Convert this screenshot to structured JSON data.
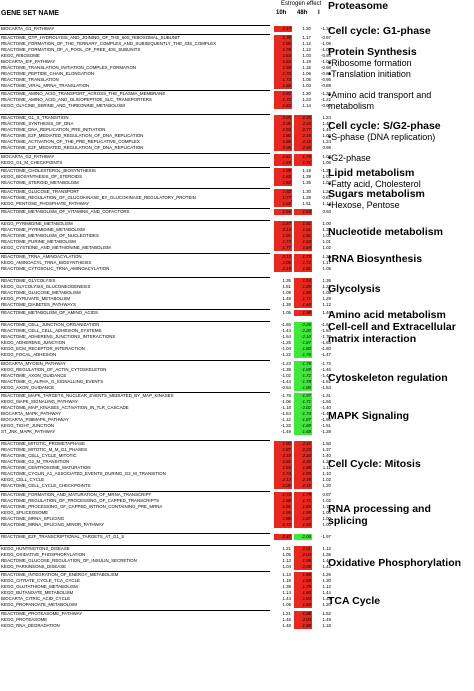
{
  "header": {
    "title": "GENE SET NAME",
    "effect": "Estrogen effect",
    "col1": "10h",
    "col2": "48h",
    "col3": "I"
  },
  "rows": [
    {
      "n": "BIOCARTA_G1_PATHWAY",
      "a": "2.17",
      "b": "1.30",
      "i": "-1.34",
      "ca": "r",
      "cb": "w",
      "sep": 0
    },
    {
      "n": "REACTOME_GTP_HYDROLYSIS_AND_JOINING_OF_THE_60S_RIBOSOMAL_SUBUNIT",
      "a": "1.78",
      "b": "1.17",
      "i": "-0.97",
      "ca": "r",
      "cb": "w",
      "sep": 1
    },
    {
      "n": "REACTOME_FORMATION_OF_THE_TERNARY_COMPLEX_AND_SUBSEQUENTLY_THE_43S_COMPLEX",
      "a": "1.80",
      "b": "1.12",
      "i": "-1.09",
      "ca": "r",
      "cb": "w",
      "sep": 0
    },
    {
      "n": "REACTOME_FORMATION_OF_A_POOL_OF_FREE_40S_SUBUNITS",
      "a": "1.76",
      "b": "1.12",
      "i": "-1.06",
      "ca": "r",
      "cb": "w",
      "sep": 0
    },
    {
      "n": "KEGG_RIBOSOME",
      "a": "1.64",
      "b": "1.03",
      "i": "-0.94",
      "ca": "r",
      "cb": "w",
      "sep": 0
    },
    {
      "n": "BIOCARTA_EIF_PATHWAY",
      "a": "1.63",
      "b": "1.19",
      "i": "-1.08",
      "ca": "r",
      "cb": "w",
      "sep": 0
    },
    {
      "n": "REACTOME_TRANSLATION_INITIATION_COMPLEX_FORMATION",
      "a": "1.59",
      "b": "1.15",
      "i": "-0.98",
      "ca": "r",
      "cb": "w",
      "sep": 0
    },
    {
      "n": "REACTOME_PEPTIDE_CHAIN_ELONGATION",
      "a": "1.73",
      "b": "1.06",
      "i": "-0.86",
      "ca": "r",
      "cb": "w",
      "sep": 0
    },
    {
      "n": "REACTOME_TRANSLATION",
      "a": "1.73",
      "b": "1.05",
      "i": "-0.95",
      "ca": "r",
      "cb": "w",
      "sep": 0
    },
    {
      "n": "REACTOME_VIRAL_MRNA_TRANSLATION",
      "a": "1.66",
      "b": "1.03",
      "i": "-0.89",
      "ca": "r",
      "cb": "w",
      "sep": 0
    },
    {
      "n": "REACTOME_AMINO_ACID_TRANSPORT_ACROSS_THE_PLASMA_MEMBRANE",
      "a": "1.62",
      "b": "1.30",
      "i": "-1.35",
      "ca": "r",
      "cb": "w",
      "sep": 1
    },
    {
      "n": "REACTOME_AMINO_ACID_AND_OLIGOPEPTIDE_SLC_TRANSPORTERS",
      "a": "1.73",
      "b": "1.23",
      "i": "-1.22",
      "ca": "r",
      "cb": "w",
      "sep": 0
    },
    {
      "n": "KEGG_GLYCINE_SERINE_AND_THREONINE_METABOLISM",
      "a": "1.63",
      "b": "1.14",
      "i": "-0.90",
      "ca": "r",
      "cb": "w",
      "sep": 0
    },
    {
      "n": "REACTOME_G1_S_TRANSITION",
      "a": "2.05",
      "b": "2.25",
      "i": "1.24",
      "ca": "r",
      "cb": "r",
      "sep": 2
    },
    {
      "n": "REACTOME_SYNTHESIS_OF_DNA",
      "a": "2.00",
      "b": "2.43",
      "i": "1.48",
      "ca": "r",
      "cb": "r",
      "sep": 0
    },
    {
      "n": "REACTOME_DNA_REPLICATION_PRE_INITIATION",
      "a": "1.93",
      "b": "2.77",
      "i": "1.45",
      "ca": "r",
      "cb": "r",
      "sep": 0
    },
    {
      "n": "REACTOME_E2F_MEDIATED_REGULATION_OF_DNA_REPLICATION",
      "a": "1.80",
      "b": "2.16",
      "i": "1.00",
      "ca": "r",
      "cb": "r",
      "sep": 0
    },
    {
      "n": "REACTOME_ACTIVATION_OF_THE_PRE_REPLICATIVE_COMPLEX",
      "a": "1.86",
      "b": "2.15",
      "i": "1.24",
      "ca": "r",
      "cb": "r",
      "sep": 0
    },
    {
      "n": "REACTOME_E2F_MEDIATED_REGULATION_OF_DNA_REPLICATION",
      "a": "2.06",
      "b": "2.40",
      "i": "0.99",
      "ca": "r",
      "cb": "r",
      "sep": 0
    },
    {
      "n": "BIOCARTA_G2_PATHWAY",
      "a": "1.61",
      "b": "1.76",
      "i": "1.08",
      "ca": "r",
      "cb": "r",
      "sep": 1
    },
    {
      "n": "KEGG_G1_M_CHECKPOINTS",
      "a": "1.69",
      "b": "1.71",
      "i": "1.06",
      "ca": "r",
      "cb": "r",
      "sep": 0
    },
    {
      "n": "REACTOME_CHOLESTEROL_BIOSYNTHESIS",
      "a": "1.98",
      "b": "1.19",
      "i": "-1.25",
      "ca": "r",
      "cb": "w",
      "sep": 1
    },
    {
      "n": "KEGG_BIOSYNTHESIS_OF_STEROIDS",
      "a": "1.65",
      "b": "1.39",
      "i": "1.01",
      "ca": "r",
      "cb": "w",
      "sep": 0
    },
    {
      "n": "REACTOME_STEROID_METABOLISM",
      "a": "1.63",
      "b": "1.35",
      "i": "1.03",
      "ca": "r",
      "cb": "w",
      "sep": 0
    },
    {
      "n": "REACTOME_GLUCOSE_TRANSPORT",
      "a": "1.92",
      "b": "1.30",
      "i": "1.24",
      "ca": "r",
      "cb": "w",
      "sep": 1
    },
    {
      "n": "REACTOME_REGULATION_OF_GLUCOKINASE_BY_GLUCOKINASE_REGULATORY_PROTEIN",
      "a": "1.77",
      "b": "1.28",
      "i": "0.81",
      "ca": "r",
      "cb": "w",
      "sep": 0
    },
    {
      "n": "KEGG_PENTOSE_PHOSPHATE_PATHWAY",
      "a": "1.69",
      "b": "1.51",
      "i": "1.13",
      "ca": "r",
      "cb": "w",
      "sep": 0
    },
    {
      "n": "REACTOME_METABOLISM_OF_VITAMINS_AND_COFACTORS",
      "a": "1.66",
      "b": "1.64",
      "i": "0.93",
      "ca": "r",
      "cb": "r",
      "sep": 1
    },
    {
      "n": "KEGG_PYRIMIDINE_METABOLISM",
      "a": "1.67",
      "b": "1.51",
      "i": "1.00",
      "ca": "r",
      "cb": "r",
      "sep": 2
    },
    {
      "n": "REACTOME_PYRIMIDINE_METABOLISM",
      "a": "2.13",
      "b": "1.61",
      "i": "1.31",
      "ca": "r",
      "cb": "r",
      "sep": 0
    },
    {
      "n": "REACTOME_METABOLISM_OF_NUCLEOTIDES",
      "a": "1.91",
      "b": "1.61",
      "i": "1.02",
      "ca": "r",
      "cb": "r",
      "sep": 0
    },
    {
      "n": "REACTOME_PURINE_METABOLISM",
      "a": "1.74",
      "b": "1.63",
      "i": "1.01",
      "ca": "r",
      "cb": "r",
      "sep": 0
    },
    {
      "n": "KEGG_CYSTEINE_AND_METHIONINE_METABOLISM",
      "a": "1.77",
      "b": "1.64",
      "i": "1.02",
      "ca": "r",
      "cb": "r",
      "sep": 0
    },
    {
      "n": "REACTOME_TRNA_AMINOACYLATION",
      "a": "2.12",
      "b": "1.75",
      "i": "1.21",
      "ca": "r",
      "cb": "r",
      "sep": 1
    },
    {
      "n": "KEGG_AMINOACYL_TRNA_BIOSYNTHESIS",
      "a": "2.06",
      "b": "1.72",
      "i": "1.17",
      "ca": "r",
      "cb": "r",
      "sep": 0
    },
    {
      "n": "REACTOME_CYTOSOLIC_TRNA_AMINOACYLATION",
      "a": "2.19",
      "b": "1.81",
      "i": "1.05",
      "ca": "r",
      "cb": "r",
      "sep": 0
    },
    {
      "n": "REACTOME_GLYCOLYSIS",
      "a": "1.35",
      "b": "1.54",
      "i": "1.36",
      "ca": "w",
      "cb": "r",
      "sep": 2
    },
    {
      "n": "KEGG_GLYCOLYSIS_GLUCONEOGENESIS",
      "a": "1.51",
      "b": "1.69",
      "i": "1.21",
      "ca": "w",
      "cb": "r",
      "sep": 0
    },
    {
      "n": "REACTOME_GLUCOSE_METABOLISM",
      "a": "1.09",
      "b": "1.80",
      "i": "1.08",
      "ca": "w",
      "cb": "r",
      "sep": 0
    },
    {
      "n": "KEGG_PYRUVATE_METABOLISM",
      "a": "1.48",
      "b": "1.71",
      "i": "1.29",
      "ca": "w",
      "cb": "r",
      "sep": 0
    },
    {
      "n": "REACTOME_DIABETES_PATHWAYS",
      "a": "1.38",
      "b": "1.60",
      "i": "1.12",
      "ca": "w",
      "cb": "r",
      "sep": 0
    },
    {
      "n": "REACTOME_METABOLISM_OF_AMINO_ACIDS",
      "a": "1.05",
      "b": "1.98",
      "i": "1.46",
      "ca": "w",
      "cb": "r",
      "sep": 1
    },
    {
      "n": "REACTOME_CELL_JUNCTION_ORGANIZATION",
      "a": "-1.66",
      "b": "-2.26",
      "i": "-1.61",
      "ca": "w",
      "cb": "g",
      "sep": 2
    },
    {
      "n": "REACTOME_CELL_CELL_ADHESION_SYSTEMS",
      "a": "-1.44",
      "b": "-2.20",
      "i": "-1.84",
      "ca": "w",
      "cb": "g",
      "sep": 0
    },
    {
      "n": "REACTOME_ADHERENS_JUNCTIONS_INTERACTIONS",
      "a": "-1.64",
      "b": "-2.10",
      "i": "-1.70",
      "ca": "w",
      "cb": "g",
      "sep": 0
    },
    {
      "n": "KEGG_ADHERENS_JUNCTION",
      "a": "-1.26",
      "b": "-1.87",
      "i": "-1.65",
      "ca": "w",
      "cb": "g",
      "sep": 0
    },
    {
      "n": "KEGG_ECM_RECEPTOR_INTERACTION",
      "a": "-1.04",
      "b": "-1.80",
      "i": "-1.60",
      "ca": "w",
      "cb": "g",
      "sep": 0
    },
    {
      "n": "KEGG_FOCAL_ADHESION",
      "a": "-1.22",
      "b": "-1.76",
      "i": "-1.47",
      "ca": "w",
      "cb": "g",
      "sep": 0
    },
    {
      "n": "BIOCARTA_MYOSIN_PATHWAY",
      "a": "-1.23",
      "b": "-1.76",
      "i": "-1.72",
      "ca": "w",
      "cb": "g",
      "sep": 1
    },
    {
      "n": "KEGG_REGULATION_OF_ACTIN_CYTOSKELETON",
      "a": "-1.38",
      "b": "-1.89",
      "i": "-1.46",
      "ca": "w",
      "cb": "g",
      "sep": 0
    },
    {
      "n": "REACTOME_AXON_GUIDANCE",
      "a": "-1.02",
      "b": "-1.72",
      "i": "-1.43",
      "ca": "w",
      "cb": "g",
      "sep": 0
    },
    {
      "n": "REACTOME_G_ALPHA_G_SIGNALLING_EVENTS",
      "a": "-1.44",
      "b": "-1.78",
      "i": "-1.52",
      "ca": "w",
      "cb": "g",
      "sep": 0
    },
    {
      "n": "KEGG_AXON_GUIDANCE",
      "a": "-0.54",
      "b": "-1.80",
      "i": "-1.53",
      "ca": "w",
      "cb": "g",
      "sep": 0
    },
    {
      "n": "REACTOME_MAPK_TARGETS_NUCLEAR_EVENTS_MEDIATED_BY_MAP_KINASES",
      "a": "-1.76",
      "b": "-1.97",
      "i": "-1.31",
      "ca": "w",
      "cb": "g",
      "sep": 1
    },
    {
      "n": "KEGG_MAPK_SIGNALING_PATHWAY",
      "a": "-1.06",
      "b": "-1.71",
      "i": "-1.56",
      "ca": "w",
      "cb": "g",
      "sep": 0
    },
    {
      "n": "REACTOME_MAP_KINASES_ACTIVATION_IN_TLR_CASCADE",
      "a": "-1.18",
      "b": "-2.02",
      "i": "-1.40",
      "ca": "w",
      "cb": "g",
      "sep": 0
    },
    {
      "n": "BIOCARTA_MAPK_PATHWAY",
      "a": "-1.54",
      "b": "-1.74",
      "i": "-1.49",
      "ca": "w",
      "cb": "g",
      "sep": 0
    },
    {
      "n": "BIOCARTA_P38MAPK_PATHWAY",
      "a": "-1.12",
      "b": "-1.87",
      "i": "-1.66",
      "ca": "w",
      "cb": "g",
      "sep": 0
    },
    {
      "n": "KEGG_TIGHT_JUNCTION",
      "a": "-1.32",
      "b": "-1.69",
      "i": "-1.51",
      "ca": "w",
      "cb": "g",
      "sep": 0
    },
    {
      "n": "ST_JNK_MAPK_PATHWAY",
      "a": "-1.49",
      "b": "-1.68",
      "i": "-1.28",
      "ca": "w",
      "cb": "g",
      "sep": 0
    },
    {
      "n": "REACTOME_MITOTIC_PROMETAPHASE",
      "a": "1.80",
      "b": "2.41",
      "i": "1.50",
      "ca": "r",
      "cb": "r",
      "sep": 2
    },
    {
      "n": "REACTOME_MITOTIC_M_M_G1_PHASES",
      "a": "1.87",
      "b": "2.23",
      "i": "1.37",
      "ca": "r",
      "cb": "r",
      "sep": 0
    },
    {
      "n": "REACTOME_CELL_CYCLE_MITOTIC",
      "a": "2.10",
      "b": "2.34",
      "i": "1.40",
      "ca": "r",
      "cb": "r",
      "sep": 0
    },
    {
      "n": "REACTOME_G2_M_TRANSITION",
      "a": "1.81",
      "b": "2.20",
      "i": "1.25",
      "ca": "r",
      "cb": "r",
      "sep": 0
    },
    {
      "n": "REACTOME_CENTROSOME_MATURATION",
      "a": "1.84",
      "b": "1.88",
      "i": "1.11",
      "ca": "r",
      "cb": "r",
      "sep": 0
    },
    {
      "n": "REACTOME_CYCLIN_A1_ASSOCIATED_EVENTS_DURING_G2_M_TRANSITION",
      "a": "1.74",
      "b": "1.95",
      "i": "1.10",
      "ca": "r",
      "cb": "r",
      "sep": 0
    },
    {
      "n": "KEGG_CELL_CYCLE",
      "a": "2.13",
      "b": "2.18",
      "i": "1.02",
      "ca": "r",
      "cb": "r",
      "sep": 0
    },
    {
      "n": "REACTOME_CELL_CYCLE_CHECKPOINTS",
      "a": "2.00",
      "b": "2.15",
      "i": "1.20",
      "ca": "r",
      "cb": "r",
      "sep": 0
    },
    {
      "n": "REACTOME_FORMATION_AND_MATURATION_OF_MRNA_TRANSCRIPT",
      "a": "1.74",
      "b": "1.79",
      "i": "0.97",
      "ca": "r",
      "cb": "r",
      "sep": 1
    },
    {
      "n": "REACTOME_REGULATION_OF_PROCESSING_OF_CAPPED_TRANSCRIPTS",
      "a": "1.86",
      "b": "1.71",
      "i": "1.02",
      "ca": "r",
      "cb": "r",
      "sep": 0
    },
    {
      "n": "REACTOME_PROCESSING_OF_CAPPED_INTRON_CONTAINING_PRE_MRNA",
      "a": "1.91",
      "b": "1.65",
      "i": "1.17",
      "ca": "r",
      "cb": "r",
      "sep": 0
    },
    {
      "n": "KEGG_SPLICEOSOME",
      "a": "1.95",
      "b": "1.95",
      "i": "1.06",
      "ca": "r",
      "cb": "r",
      "sep": 0
    },
    {
      "n": "REACTOME_MRNA_SPLICING",
      "a": "1.88",
      "b": "1.67",
      "i": "1.00",
      "ca": "r",
      "cb": "r",
      "sep": 0
    },
    {
      "n": "REACTOME_MRNA_SPLICING_MINOR_PATHWAY",
      "a": "1.72",
      "b": "1.54",
      "i": "1.00",
      "ca": "r",
      "cb": "r",
      "sep": 0
    },
    {
      "n": "REACTOME_E2F_TRANSCRIPTIONAL_TARGETS_AT_G1_S",
      "a": "2.47",
      "b": "-2.06",
      "i": "-1.97",
      "ca": "r",
      "cb": "g",
      "sep": 2
    },
    {
      "n": "KEGG_HUNTINGTONS_DISEASE",
      "a": "1.21",
      "b": "2.01",
      "i": "1.12",
      "ca": "w",
      "cb": "r",
      "sep": 2
    },
    {
      "n": "KEGG_OXIDATIVE_PHOSPHORYLATION",
      "a": "1.05",
      "b": "2.04",
      "i": "1.36",
      "ca": "w",
      "cb": "r",
      "sep": 0
    },
    {
      "n": "REACTOME_GLUCOSE_REGULATION_OF_INSULIN_SECRETION",
      "a": "1.13",
      "b": "1.95",
      "i": "1.42",
      "ca": "w",
      "cb": "r",
      "sep": 0
    },
    {
      "n": "KEGG_PARKINSONS_DISEASE",
      "a": "1.04",
      "b": "2.06",
      "i": "1.42",
      "ca": "w",
      "cb": "r",
      "sep": 0
    },
    {
      "n": "REACTOME_INTEGRATION_OF_ENERGY_METABOLISM",
      "a": "1.13",
      "b": "1.86",
      "i": "1.26",
      "ca": "w",
      "cb": "r",
      "sep": 1
    },
    {
      "n": "KEGG_CITRATE_CYCLE_TCA_CYCLE",
      "a": "1.19",
      "b": "1.89",
      "i": "1.30",
      "ca": "w",
      "cb": "r",
      "sep": 0
    },
    {
      "n": "KEGG_GLUTATHIONE_METABOLISM",
      "a": "1.38",
      "b": "1.79",
      "i": "1.12",
      "ca": "w",
      "cb": "r",
      "sep": 0
    },
    {
      "n": "KEGG_BUTANOATE_METABOLISM",
      "a": "1.14",
      "b": "1.80",
      "i": "1.44",
      "ca": "w",
      "cb": "r",
      "sep": 0
    },
    {
      "n": "BIOCARTA_CITRIC_ACID_CYCLE",
      "a": "1.44",
      "b": "1.84",
      "i": "1.48",
      "ca": "w",
      "cb": "r",
      "sep": 0
    },
    {
      "n": "KEGG_PROPANOATE_METABOLISM",
      "a": "1.06",
      "b": "1.84",
      "i": "1.20",
      "ca": "w",
      "cb": "r",
      "sep": 0
    },
    {
      "n": "REACTOME_PROTEASOME_PATHWAY",
      "a": "1.21",
      "b": "1.86",
      "i": "1.52",
      "ca": "w",
      "cb": "r",
      "sep": 1
    },
    {
      "n": "KEGG_PROTEASOME",
      "a": "1.46",
      "b": "2.04",
      "i": "1.49",
      "ca": "w",
      "cb": "r",
      "sep": 0
    },
    {
      "n": "KEGG_RNA_DEGRADATION",
      "a": "1.48",
      "b": "1.80",
      "i": "1.18",
      "ca": "w",
      "cb": "r",
      "sep": 0
    }
  ],
  "labels": [
    {
      "t": "Cell cycle: G1-phase",
      "subs": [],
      "row": 0
    },
    {
      "t": "Protein Synthesis",
      "subs": [
        "•Ribosome formation",
        "•Translation initiation"
      ],
      "row": 3
    },
    {
      "t": "",
      "subs": [
        "•Amino acid transport and metabolism"
      ],
      "row": 10
    },
    {
      "t": "Cell cycle: S/G2-phase",
      "subs": [
        "•S-phase (DNA replication)"
      ],
      "row": 14
    },
    {
      "t": "",
      "subs": [
        "•G2-phase"
      ],
      "row": 19
    },
    {
      "t": "Lipid metabolism",
      "subs": [
        "•Fatty acid, Cholesterol"
      ],
      "row": 21
    },
    {
      "t": "Sugars metabolism",
      "subs": [
        "•Hexose, Pentose"
      ],
      "row": 24
    },
    {
      "t": "Nucleotide metabolism",
      "subs": [],
      "row": 29
    },
    {
      "t": "tRNA Biosynthesis",
      "subs": [],
      "row": 33
    },
    {
      "t": "Glycolysis",
      "subs": [],
      "row": 37
    },
    {
      "t": "Amino acid metabolism",
      "subs": [],
      "row": 41
    },
    {
      "t": "Cell-cell and Extracellular matrix interaction",
      "subs": [],
      "row": 42
    },
    {
      "t": "Cytoskeleton regulation",
      "subs": [],
      "row": 50
    },
    {
      "t": "MAPK Signaling",
      "subs": [],
      "row": 56
    },
    {
      "t": "Cell Cycle: Mitosis",
      "subs": [],
      "row": 63
    },
    {
      "t": "RNA processing and splicing",
      "subs": [],
      "row": 70
    },
    {
      "t": "Oxidative Phosphorylation",
      "subs": [],
      "row": 77
    },
    {
      "t": "TCA Cycle",
      "subs": [],
      "row": 83
    },
    {
      "t": "Proteasome",
      "subs": [],
      "row": 88
    }
  ],
  "colors": {
    "red": "#e8271e",
    "green": "#3ee93a",
    "white": "#ffffff"
  }
}
